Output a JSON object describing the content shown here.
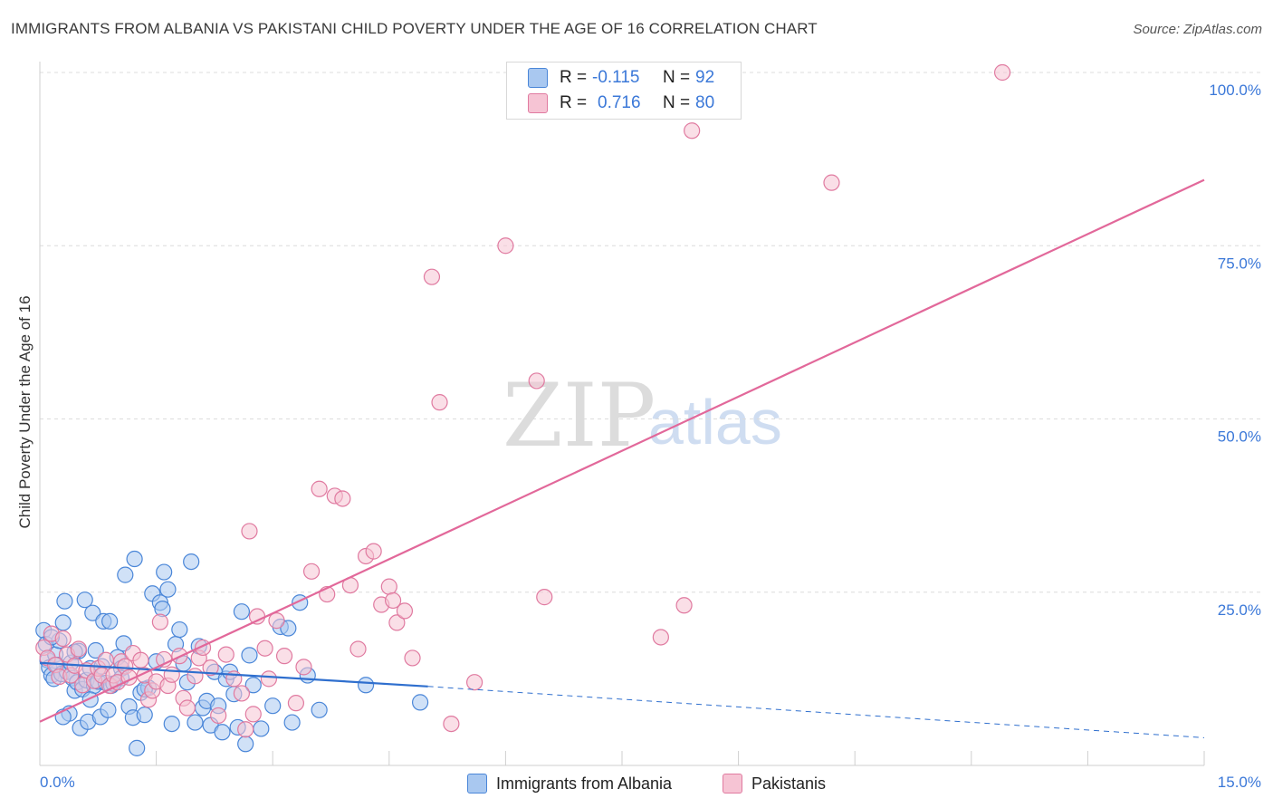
{
  "title": "IMMIGRANTS FROM ALBANIA VS PAKISTANI CHILD POVERTY UNDER THE AGE OF 16 CORRELATION CHART",
  "source": "Source: ZipAtlas.com",
  "watermark": {
    "zip": "ZIP",
    "atlas": "atlas"
  },
  "legend": {
    "rows": [
      {
        "r_label": "R =",
        "r_value": "-0.115",
        "n_label": "N =",
        "n_value": "92"
      },
      {
        "r_label": "R =",
        "r_value": "0.716",
        "n_label": "N =",
        "n_value": "80"
      }
    ]
  },
  "bottom_legend": {
    "series1": "Immigrants from Albania",
    "series2": "Pakistanis"
  },
  "colors": {
    "albania_fill": "#a9c8f0",
    "albania_stroke": "#4a86d8",
    "albania_line": "#2f6fce",
    "pakistani_fill": "#f6c4d4",
    "pakistani_stroke": "#e07aa0",
    "pakistani_line": "#e2689a",
    "axis_blue": "#3b78d8",
    "grid": "#dcdcdc"
  },
  "chart_data": {
    "type": "scatter",
    "title": "IMMIGRANTS FROM ALBANIA VS PAKISTANI CHILD POVERTY UNDER THE AGE OF 16 CORRELATION CHART",
    "xlabel": "",
    "ylabel": "Child Poverty Under the Age of 16",
    "xlim": [
      0,
      15
    ],
    "ylim": [
      0,
      100
    ],
    "x_tick_labels": [
      "0.0%",
      "15.0%"
    ],
    "y_ticks": [
      25,
      50,
      75,
      100
    ],
    "y_tick_labels": [
      "25.0%",
      "50.0%",
      "75.0%",
      "100.0%"
    ],
    "series": [
      {
        "name": "Immigrants from Albania",
        "R": -0.115,
        "N": 92,
        "trend": {
          "x_solid": [
            0,
            5
          ],
          "y_solid": [
            14.8,
            11.4
          ],
          "x_dashed": [
            5,
            15
          ],
          "y_dashed": [
            11.4,
            4.0
          ]
        },
        "points": [
          [
            0.05,
            19.5
          ],
          [
            0.08,
            17.5
          ],
          [
            0.1,
            15.2
          ],
          [
            0.12,
            14.1
          ],
          [
            0.15,
            13.0
          ],
          [
            0.18,
            12.5
          ],
          [
            0.2,
            16.0
          ],
          [
            0.22,
            14.5
          ],
          [
            0.25,
            18.0
          ],
          [
            0.28,
            13.2
          ],
          [
            0.3,
            20.6
          ],
          [
            0.32,
            23.7
          ],
          [
            0.35,
            13.5
          ],
          [
            0.38,
            7.5
          ],
          [
            0.4,
            14.8
          ],
          [
            0.42,
            12.6
          ],
          [
            0.45,
            10.8
          ],
          [
            0.48,
            12.0
          ],
          [
            0.5,
            16.5
          ],
          [
            0.52,
            5.4
          ],
          [
            0.55,
            11.0
          ],
          [
            0.58,
            23.9
          ],
          [
            0.6,
            12.3
          ],
          [
            0.62,
            6.3
          ],
          [
            0.65,
            14.0
          ],
          [
            0.68,
            22.0
          ],
          [
            0.7,
            11.5
          ],
          [
            0.72,
            16.6
          ],
          [
            0.75,
            12.1
          ],
          [
            0.78,
            7.0
          ],
          [
            0.8,
            14.3
          ],
          [
            0.82,
            20.8
          ],
          [
            0.85,
            11.9
          ],
          [
            0.88,
            8.0
          ],
          [
            0.9,
            20.8
          ],
          [
            0.92,
            11.5
          ],
          [
            1.0,
            15.6
          ],
          [
            1.05,
            14.0
          ],
          [
            1.08,
            17.6
          ],
          [
            1.1,
            27.5
          ],
          [
            1.15,
            8.5
          ],
          [
            1.2,
            6.9
          ],
          [
            1.22,
            29.8
          ],
          [
            1.25,
            2.5
          ],
          [
            1.3,
            10.5
          ],
          [
            1.35,
            7.3
          ],
          [
            1.4,
            11.2
          ],
          [
            1.45,
            24.8
          ],
          [
            1.5,
            15.0
          ],
          [
            1.55,
            23.5
          ],
          [
            1.58,
            22.6
          ],
          [
            1.6,
            27.9
          ],
          [
            1.65,
            25.4
          ],
          [
            1.7,
            6.0
          ],
          [
            1.75,
            17.5
          ],
          [
            1.8,
            19.6
          ],
          [
            1.85,
            14.7
          ],
          [
            1.9,
            12.0
          ],
          [
            1.95,
            29.4
          ],
          [
            2.0,
            6.2
          ],
          [
            2.05,
            17.2
          ],
          [
            2.1,
            8.3
          ],
          [
            2.15,
            9.3
          ],
          [
            2.2,
            5.8
          ],
          [
            2.25,
            13.5
          ],
          [
            2.3,
            8.6
          ],
          [
            2.35,
            4.8
          ],
          [
            2.4,
            12.5
          ],
          [
            2.45,
            13.5
          ],
          [
            2.5,
            10.3
          ],
          [
            2.55,
            5.5
          ],
          [
            2.6,
            22.2
          ],
          [
            2.65,
            3.1
          ],
          [
            2.7,
            15.9
          ],
          [
            2.75,
            11.6
          ],
          [
            2.85,
            5.3
          ],
          [
            3.0,
            8.6
          ],
          [
            3.1,
            20.0
          ],
          [
            3.2,
            19.8
          ],
          [
            3.25,
            6.2
          ],
          [
            3.35,
            23.5
          ],
          [
            3.45,
            13.0
          ],
          [
            3.6,
            8.0
          ],
          [
            4.2,
            11.6
          ],
          [
            4.9,
            9.1
          ],
          [
            0.3,
            7.0
          ],
          [
            1.05,
            12.6
          ],
          [
            0.95,
            11.8
          ],
          [
            0.45,
            16.4
          ],
          [
            0.15,
            18.5
          ],
          [
            0.65,
            9.5
          ],
          [
            1.35,
            11.0
          ]
        ]
      },
      {
        "name": "Pakistanis",
        "R": 0.716,
        "N": 80,
        "trend": {
          "x_solid": [
            0,
            15
          ],
          "y_solid": [
            6.3,
            84.5
          ]
        },
        "points": [
          [
            0.05,
            17.0
          ],
          [
            0.1,
            15.5
          ],
          [
            0.15,
            19.0
          ],
          [
            0.2,
            14.5
          ],
          [
            0.25,
            12.8
          ],
          [
            0.3,
            18.3
          ],
          [
            0.35,
            16.0
          ],
          [
            0.4,
            13.0
          ],
          [
            0.45,
            14.4
          ],
          [
            0.5,
            16.8
          ],
          [
            0.55,
            11.6
          ],
          [
            0.6,
            13.7
          ],
          [
            0.7,
            12.2
          ],
          [
            0.75,
            14.0
          ],
          [
            0.8,
            13.0
          ],
          [
            0.85,
            15.2
          ],
          [
            0.9,
            11.5
          ],
          [
            0.95,
            13.0
          ],
          [
            1.0,
            12.0
          ],
          [
            1.05,
            15.0
          ],
          [
            1.1,
            14.3
          ],
          [
            1.15,
            12.7
          ],
          [
            1.2,
            16.2
          ],
          [
            1.3,
            15.2
          ],
          [
            1.35,
            13.0
          ],
          [
            1.4,
            9.5
          ],
          [
            1.45,
            10.8
          ],
          [
            1.5,
            12.1
          ],
          [
            1.55,
            20.7
          ],
          [
            1.6,
            15.3
          ],
          [
            1.65,
            11.5
          ],
          [
            1.7,
            13.1
          ],
          [
            1.8,
            15.8
          ],
          [
            1.85,
            9.7
          ],
          [
            1.9,
            8.3
          ],
          [
            2.0,
            12.9
          ],
          [
            2.05,
            15.5
          ],
          [
            2.1,
            17.0
          ],
          [
            2.2,
            14.1
          ],
          [
            2.3,
            7.2
          ],
          [
            2.4,
            16.0
          ],
          [
            2.5,
            12.5
          ],
          [
            2.6,
            10.4
          ],
          [
            2.65,
            5.2
          ],
          [
            2.7,
            33.8
          ],
          [
            2.75,
            7.4
          ],
          [
            2.8,
            21.5
          ],
          [
            2.9,
            16.9
          ],
          [
            2.95,
            12.5
          ],
          [
            3.05,
            20.9
          ],
          [
            3.15,
            15.8
          ],
          [
            3.3,
            9.0
          ],
          [
            3.4,
            14.2
          ],
          [
            3.5,
            28.0
          ],
          [
            3.6,
            39.9
          ],
          [
            3.7,
            24.7
          ],
          [
            3.8,
            38.9
          ],
          [
            3.9,
            38.5
          ],
          [
            4.0,
            26.0
          ],
          [
            4.1,
            16.8
          ],
          [
            4.2,
            30.2
          ],
          [
            4.3,
            30.9
          ],
          [
            4.4,
            23.2
          ],
          [
            4.5,
            25.8
          ],
          [
            4.55,
            23.8
          ],
          [
            4.6,
            20.6
          ],
          [
            4.7,
            22.3
          ],
          [
            4.8,
            15.5
          ],
          [
            5.05,
            70.5
          ],
          [
            5.15,
            52.4
          ],
          [
            5.3,
            6.0
          ],
          [
            5.6,
            12.0
          ],
          [
            6.0,
            75.0
          ],
          [
            6.4,
            55.5
          ],
          [
            6.5,
            24.3
          ],
          [
            8.0,
            18.5
          ],
          [
            8.3,
            23.1
          ],
          [
            8.4,
            91.6
          ],
          [
            10.2,
            84.1
          ],
          [
            12.4,
            100.0
          ]
        ]
      }
    ]
  }
}
